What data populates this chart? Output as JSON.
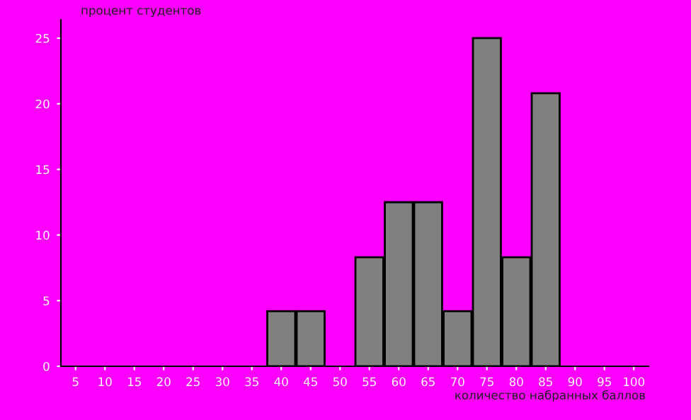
{
  "chart_data": {
    "type": "bar",
    "ylabel": "процент студентов",
    "xlabel": "количество набранных баллов",
    "categories": [
      "5",
      "10",
      "15",
      "20",
      "25",
      "30",
      "35",
      "40",
      "45",
      "50",
      "55",
      "60",
      "65",
      "70",
      "75",
      "80",
      "85",
      "90",
      "95",
      "100"
    ],
    "values": [
      0,
      0,
      0,
      0,
      0,
      0,
      0,
      4.2,
      4.2,
      0,
      8.3,
      12.5,
      12.5,
      4.2,
      25,
      8.3,
      20.8,
      0,
      0,
      0
    ],
    "color": "#808080",
    "ylim": [
      0,
      26.4
    ],
    "yticks": [
      0,
      5,
      10,
      15,
      20,
      25
    ],
    "grid": false,
    "legend": false
  }
}
